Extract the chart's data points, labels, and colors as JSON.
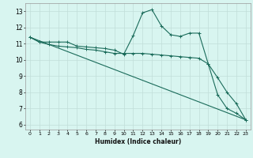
{
  "title": "",
  "xlabel": "Humidex (Indice chaleur)",
  "bg_color": "#d8f5f0",
  "grid_color": "#c0ddd8",
  "line_color": "#1a6b5a",
  "x_ticks": [
    0,
    1,
    2,
    3,
    4,
    5,
    6,
    7,
    8,
    9,
    10,
    11,
    12,
    13,
    14,
    15,
    16,
    17,
    18,
    19,
    20,
    21,
    22,
    23
  ],
  "y_ticks": [
    6,
    7,
    8,
    9,
    10,
    11,
    12,
    13
  ],
  "ylim": [
    5.7,
    13.5
  ],
  "xlim": [
    -0.5,
    23.5
  ],
  "line1_x": [
    0,
    1,
    2,
    3,
    4,
    5,
    6,
    7,
    8,
    9,
    10,
    11,
    12,
    13,
    14,
    15,
    16,
    17,
    18,
    19,
    20,
    21,
    22,
    23
  ],
  "line1_y": [
    11.4,
    11.1,
    11.1,
    11.1,
    11.1,
    10.85,
    10.8,
    10.75,
    10.7,
    10.6,
    10.35,
    11.5,
    12.9,
    13.1,
    12.1,
    11.55,
    11.45,
    11.65,
    11.65,
    9.75,
    7.85,
    7.0,
    6.7,
    6.3
  ],
  "line2_x": [
    0,
    1,
    2,
    3,
    4,
    5,
    6,
    7,
    8,
    9,
    10,
    11,
    12,
    13,
    14,
    15,
    16,
    17,
    18,
    19,
    20,
    21,
    22,
    23
  ],
  "line2_y": [
    11.4,
    11.1,
    10.95,
    10.85,
    10.8,
    10.75,
    10.65,
    10.6,
    10.5,
    10.4,
    10.4,
    10.4,
    10.4,
    10.35,
    10.3,
    10.25,
    10.2,
    10.15,
    10.1,
    9.75,
    8.9,
    8.0,
    7.3,
    6.3
  ],
  "line3_x": [
    0,
    23
  ],
  "line3_y": [
    11.4,
    6.3
  ]
}
